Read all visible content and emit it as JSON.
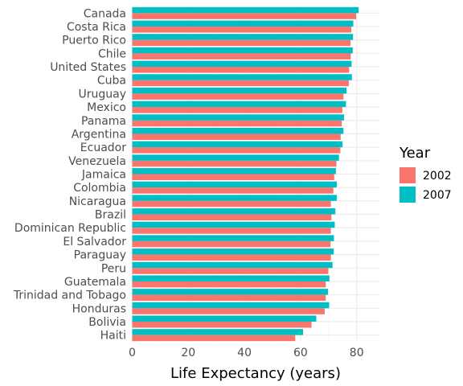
{
  "chart_data": {
    "type": "bar",
    "orientation": "horizontal",
    "title": "",
    "xlabel": "Life Expectancy (years)",
    "ylabel": "",
    "xlim": [
      0,
      88
    ],
    "x_ticks": [
      0,
      20,
      40,
      60,
      80
    ],
    "grid": true,
    "legend_title": "Year",
    "legend_position": "right",
    "categories": [
      "Canada",
      "Costa Rica",
      "Puerto Rico",
      "Chile",
      "United States",
      "Cuba",
      "Uruguay",
      "Mexico",
      "Panama",
      "Argentina",
      "Ecuador",
      "Venezuela",
      "Jamaica",
      "Colombia",
      "Nicaragua",
      "Brazil",
      "Dominican Republic",
      "El Salvador",
      "Paraguay",
      "Peru",
      "Guatemala",
      "Trinidad and Tobago",
      "Honduras",
      "Bolivia",
      "Haiti"
    ],
    "series": [
      {
        "name": "2002",
        "color": "#F8766D",
        "values": [
          79.8,
          78.1,
          77.8,
          77.9,
          77.3,
          77.2,
          75.3,
          74.9,
          74.7,
          74.3,
          74.2,
          72.8,
          72.0,
          71.7,
          70.8,
          71.0,
          70.8,
          70.7,
          70.8,
          69.9,
          68.98,
          68.98,
          68.6,
          63.9,
          58.1
        ]
      },
      {
        "name": "2007",
        "color": "#00BFC4",
        "values": [
          80.7,
          78.8,
          78.7,
          78.6,
          78.2,
          78.3,
          76.4,
          76.2,
          75.5,
          75.3,
          74.99,
          73.7,
          72.6,
          72.9,
          72.9,
          72.4,
          72.2,
          71.9,
          71.8,
          71.4,
          70.3,
          69.8,
          70.2,
          65.6,
          60.9
        ]
      }
    ]
  }
}
